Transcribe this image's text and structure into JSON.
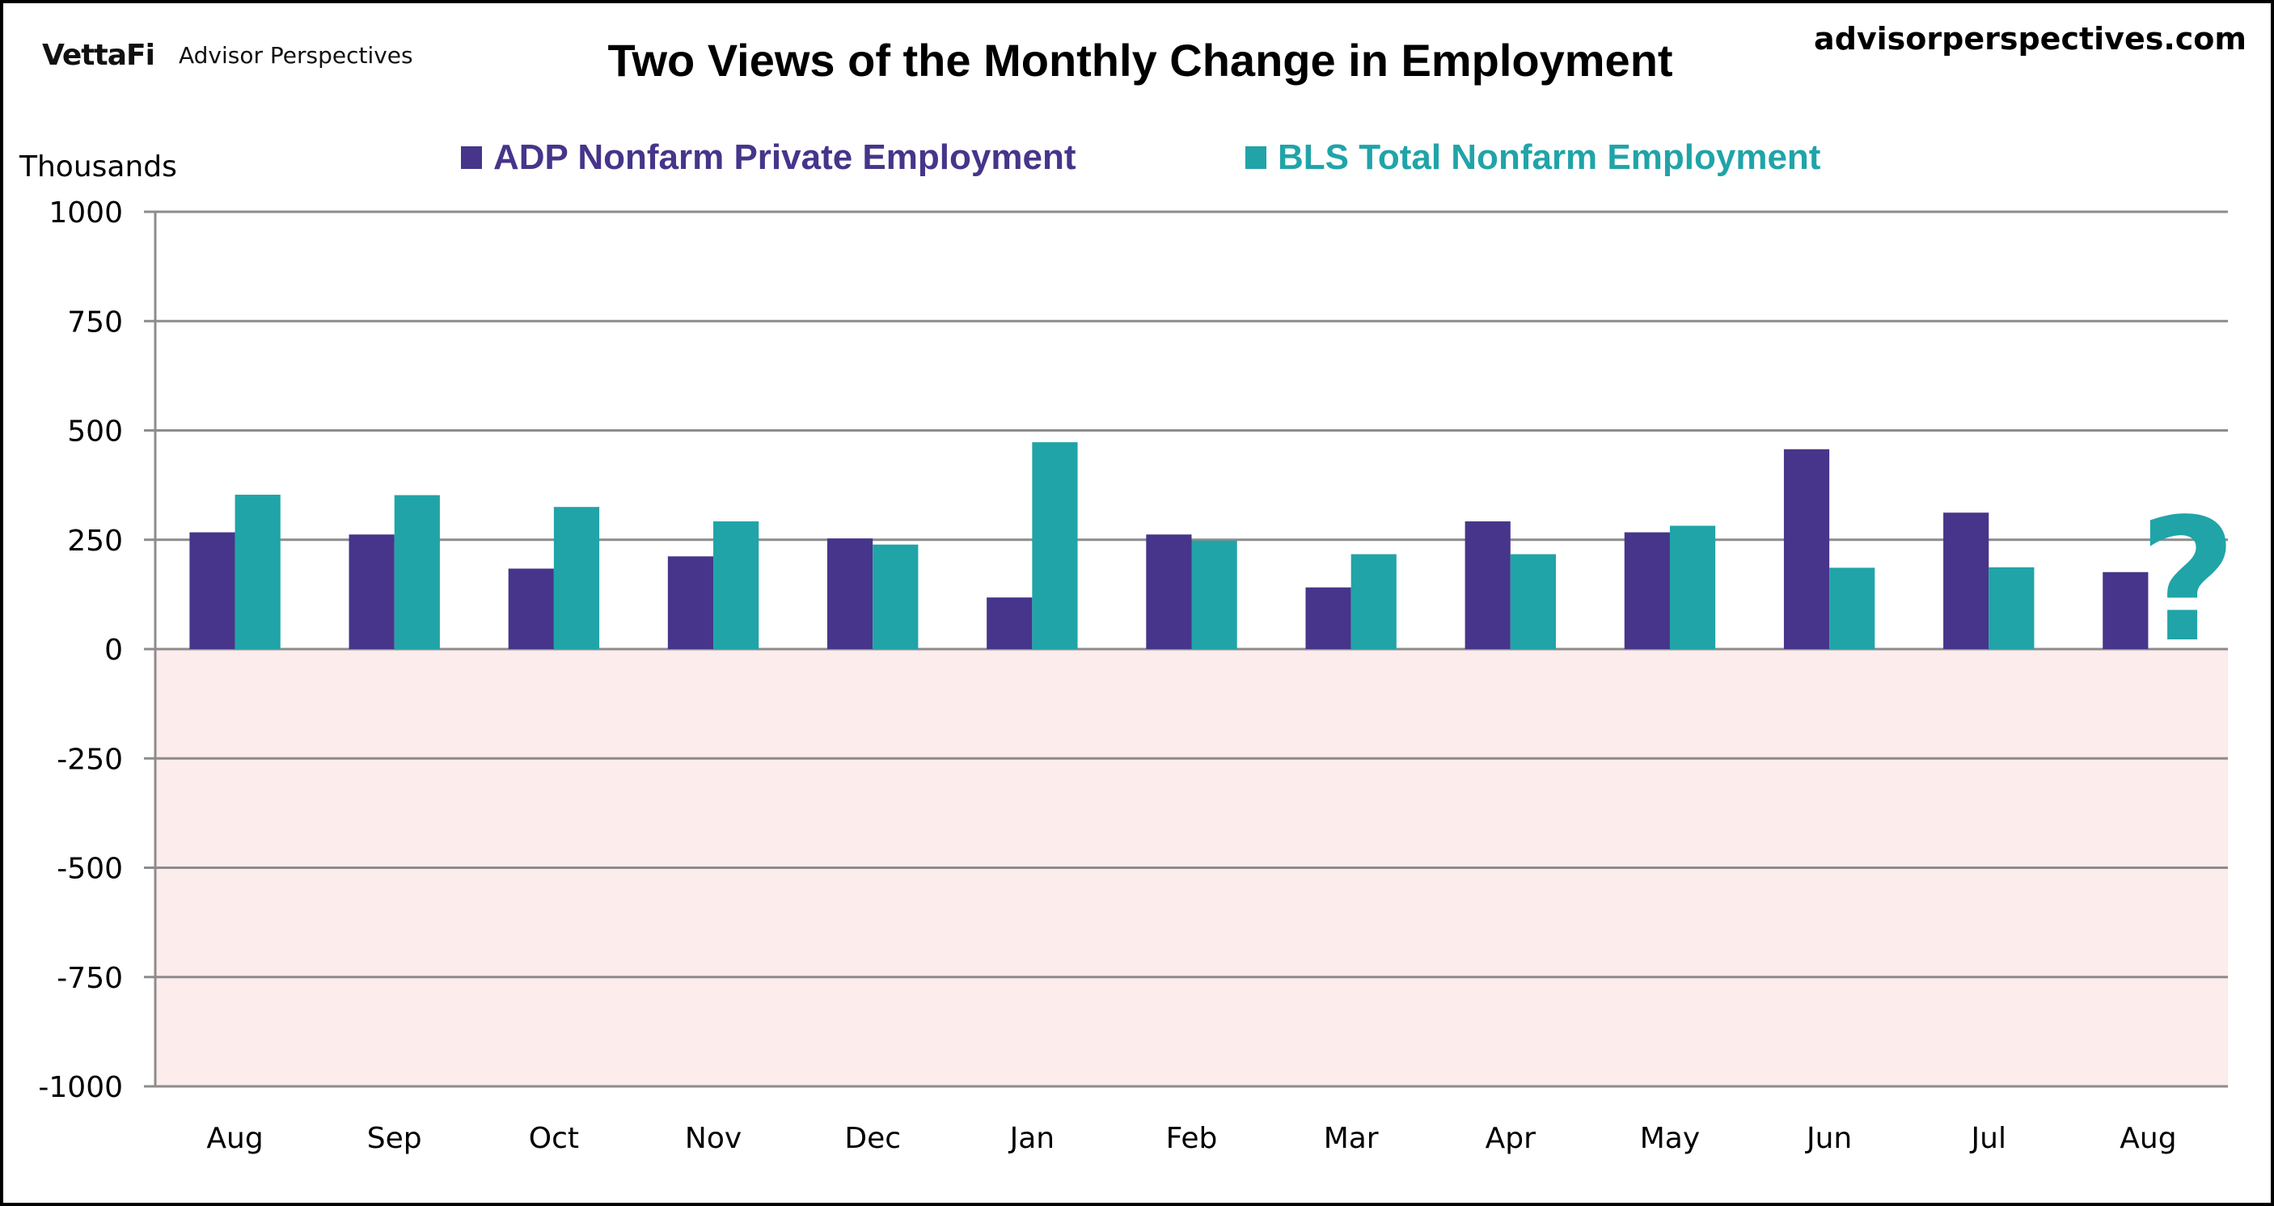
{
  "header": {
    "logo_text": "VettaFi",
    "brand_text": "Advisor Perspectives",
    "site_url": "advisorperspectives.com"
  },
  "colors": {
    "adp": "#46358A",
    "bls": "#20A4A8",
    "negative_region": "#FCECEC",
    "gridline": "#8C8C8C"
  },
  "chart_data": {
    "type": "bar",
    "title": "Two Views of the Monthly Change in Employment",
    "xlabel": "",
    "ylabel": "Thousands",
    "ylim": [
      -1000,
      1000
    ],
    "yticks": [
      1000,
      750,
      500,
      250,
      0,
      -250,
      -500,
      -750,
      -1000
    ],
    "grid": true,
    "legend_position": "top",
    "categories": [
      "Aug",
      "Sep",
      "Oct",
      "Nov",
      "Dec",
      "Jan",
      "Feb",
      "Mar",
      "Apr",
      "May",
      "Jun",
      "Jul",
      "Aug"
    ],
    "series": [
      {
        "name": "ADP Nonfarm Private Employment",
        "color": "#46358A",
        "values": [
          267,
          262,
          184,
          212,
          253,
          118,
          262,
          141,
          292,
          267,
          457,
          312,
          176
        ]
      },
      {
        "name": "BLS Total Nonfarm Employment",
        "color": "#20A4A8",
        "values": [
          353,
          352,
          325,
          292,
          239,
          473,
          248,
          217,
          217,
          282,
          186,
          187,
          null
        ]
      }
    ],
    "annotations": [
      {
        "text": "?",
        "category_index": 12,
        "series": "BLS Total Nonfarm Employment",
        "color": "#20A4A8"
      }
    ],
    "shaded_region": {
      "from": -1000,
      "to": 0,
      "color": "#FCECEC"
    }
  }
}
